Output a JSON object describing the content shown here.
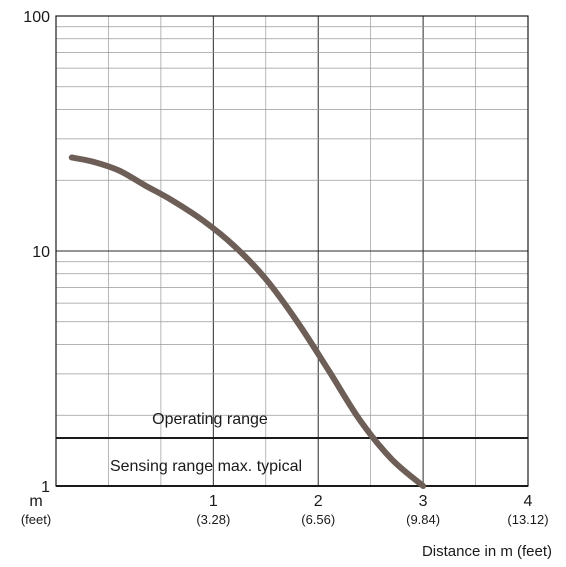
{
  "chart_data": {
    "type": "line",
    "y_scale": "log",
    "xlim": [
      -0.5,
      4
    ],
    "ylim": [
      1,
      100
    ],
    "x_ticks": [
      {
        "value": -0.5,
        "label": "m",
        "sublabel": "(feet)"
      },
      {
        "value": 1,
        "label": "1",
        "sublabel": "(3.28)"
      },
      {
        "value": 2,
        "label": "2",
        "sublabel": "(6.56)"
      },
      {
        "value": 3,
        "label": "3",
        "sublabel": "(9.84)"
      },
      {
        "value": 4,
        "label": "4",
        "sublabel": "(13.12)"
      }
    ],
    "y_ticks": [
      {
        "value": 1,
        "label": "1"
      },
      {
        "value": 10,
        "label": "10"
      },
      {
        "value": 100,
        "label": "100"
      }
    ],
    "xlabel": "Distance in m (feet)",
    "ylabel": "",
    "grid": true,
    "series": [
      {
        "color": "#6d5f57",
        "x": [
          -0.35,
          -0.15,
          0.1,
          0.35,
          0.6,
          0.9,
          1.2,
          1.5,
          1.8,
          2.1,
          2.4,
          2.7,
          3.0
        ],
        "y": [
          25,
          24,
          22,
          19,
          16.5,
          13.5,
          10.5,
          7.6,
          5.0,
          3.1,
          1.9,
          1.3,
          1.0
        ]
      }
    ],
    "annotations": [
      {
        "text": "Operating range",
        "y_line": 1.6
      },
      {
        "text": "Sensing range max. typical"
      }
    ]
  }
}
